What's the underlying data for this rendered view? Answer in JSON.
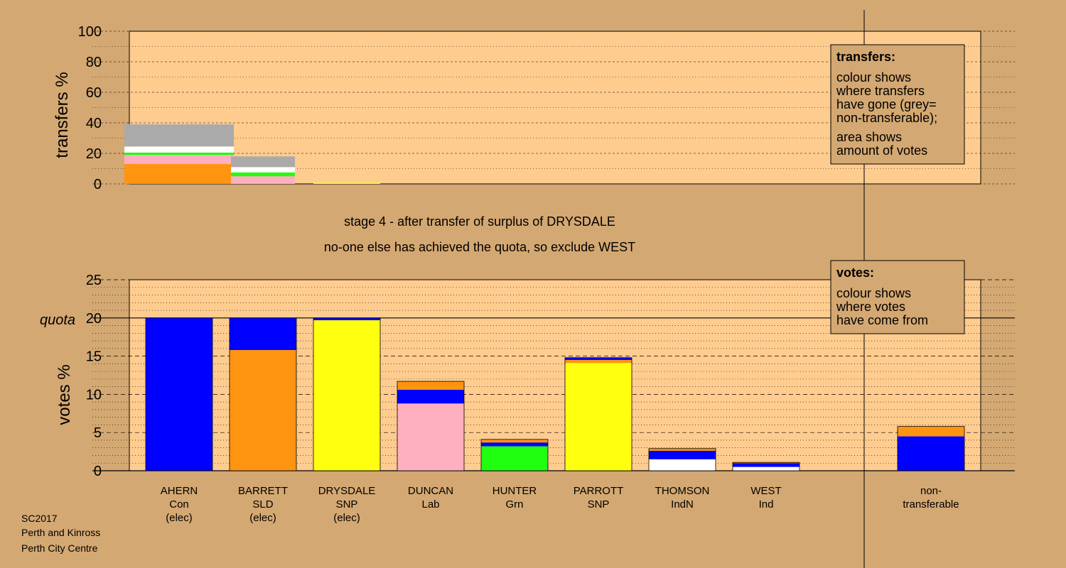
{
  "colors": {
    "page_bg": "#d4a872",
    "plot_bg": "#ffcc8f",
    "Con": "#0000ff",
    "LD": "#ff9410",
    "SNP": "#ffff10",
    "Lab": "#ffb0c0",
    "Grn": "#20ff10",
    "Ind": "#ffffff",
    "nontransferable": "#aaaaaa"
  },
  "stage_text": {
    "line1": "stage 4 - after transfer of surplus of DRYSDALE",
    "line2": "no-one else has achieved the quota, so exclude WEST"
  },
  "transfers_legend": {
    "title": "transfers:",
    "text1": [
      "colour shows",
      "where transfers",
      "have gone (grey=",
      "non-transferable);"
    ],
    "text2": [
      "area shows",
      "amount of votes"
    ]
  },
  "votes_legend": {
    "title": "votes:",
    "text1": [
      "colour shows",
      "where votes",
      "have come from"
    ]
  },
  "footer": [
    "SC2017",
    "Perth and Kinross",
    "Perth City Centre"
  ],
  "chart_data": [
    {
      "type": "bar",
      "name": "transfers",
      "ylabel": "transfers %",
      "ylim": [
        0,
        100
      ],
      "yticks": [
        0,
        20,
        40,
        60,
        80,
        100
      ],
      "grid": true,
      "legend": "top-right",
      "note": "stacked segments; widths proportional to each destination's share",
      "segments_by_source": [
        {
          "source": "AHERN",
          "stack": [
            {
              "party": "LD",
              "value": 13
            },
            {
              "party": "Lab",
              "value": 6
            },
            {
              "party": "Grn",
              "value": 1.5
            },
            {
              "party": "Ind",
              "value": 4
            },
            {
              "party": "nontransferable",
              "value": 14.5
            }
          ]
        },
        {
          "source": "BARRETT",
          "stack": [
            {
              "party": "Lab",
              "value": 5
            },
            {
              "party": "Grn",
              "value": 2.5
            },
            {
              "party": "Ind",
              "value": 3.5
            },
            {
              "party": "nontransferable",
              "value": 7
            }
          ]
        },
        {
          "source": "DRYSDALE",
          "stack": [
            {
              "party": "SNP",
              "value": 0.8
            }
          ]
        }
      ]
    },
    {
      "type": "bar",
      "name": "votes",
      "ylabel": "votes %",
      "ylim": [
        0,
        25
      ],
      "yticks": [
        0,
        5,
        10,
        15,
        20,
        25
      ],
      "quota": 20,
      "quota_label": "quota",
      "grid": true,
      "legend": "top-right",
      "candidates": [
        {
          "name": "AHERN",
          "party": "Con",
          "status": "(elec)",
          "stack": [
            {
              "party": "Con",
              "value": 20
            }
          ]
        },
        {
          "name": "BARRETT",
          "party": "SLD",
          "status": "(elec)",
          "stack": [
            {
              "party": "LD",
              "value": 15.8
            },
            {
              "party": "Con",
              "value": 4.2
            }
          ]
        },
        {
          "name": "DRYSDALE",
          "party": "SNP",
          "status": "(elec)",
          "stack": [
            {
              "party": "SNP",
              "value": 19.7
            },
            {
              "party": "Con",
              "value": 0.3
            }
          ]
        },
        {
          "name": "DUNCAN",
          "party": "Lab",
          "status": "",
          "stack": [
            {
              "party": "Lab",
              "value": 8.8
            },
            {
              "party": "Con",
              "value": 1.8
            },
            {
              "party": "LD",
              "value": 1.1
            }
          ]
        },
        {
          "name": "HUNTER",
          "party": "Grn",
          "status": "",
          "stack": [
            {
              "party": "Grn",
              "value": 3.2
            },
            {
              "party": "Con",
              "value": 0.5
            },
            {
              "party": "LD",
              "value": 0.4
            }
          ]
        },
        {
          "name": "PARROTT",
          "party": "SNP",
          "status": "",
          "stack": [
            {
              "party": "SNP",
              "value": 14.1
            },
            {
              "party": "LD",
              "value": 0.4
            },
            {
              "party": "Con",
              "value": 0.3
            }
          ]
        },
        {
          "name": "THOMSON",
          "party": "IndN",
          "status": "",
          "stack": [
            {
              "party": "Ind",
              "value": 1.5
            },
            {
              "party": "Con",
              "value": 1.1
            },
            {
              "party": "LD",
              "value": 0.3
            }
          ]
        },
        {
          "name": "WEST",
          "party": "Ind",
          "status": "",
          "stack": [
            {
              "party": "Ind",
              "value": 0.5
            },
            {
              "party": "Con",
              "value": 0.5
            },
            {
              "party": "LD",
              "value": 0.1
            }
          ]
        }
      ],
      "nontransferable": {
        "label": [
          "non-",
          "transferable"
        ],
        "stack": [
          {
            "party": "Con",
            "value": 4.5
          },
          {
            "party": "LD",
            "value": 1.3
          }
        ]
      }
    }
  ]
}
